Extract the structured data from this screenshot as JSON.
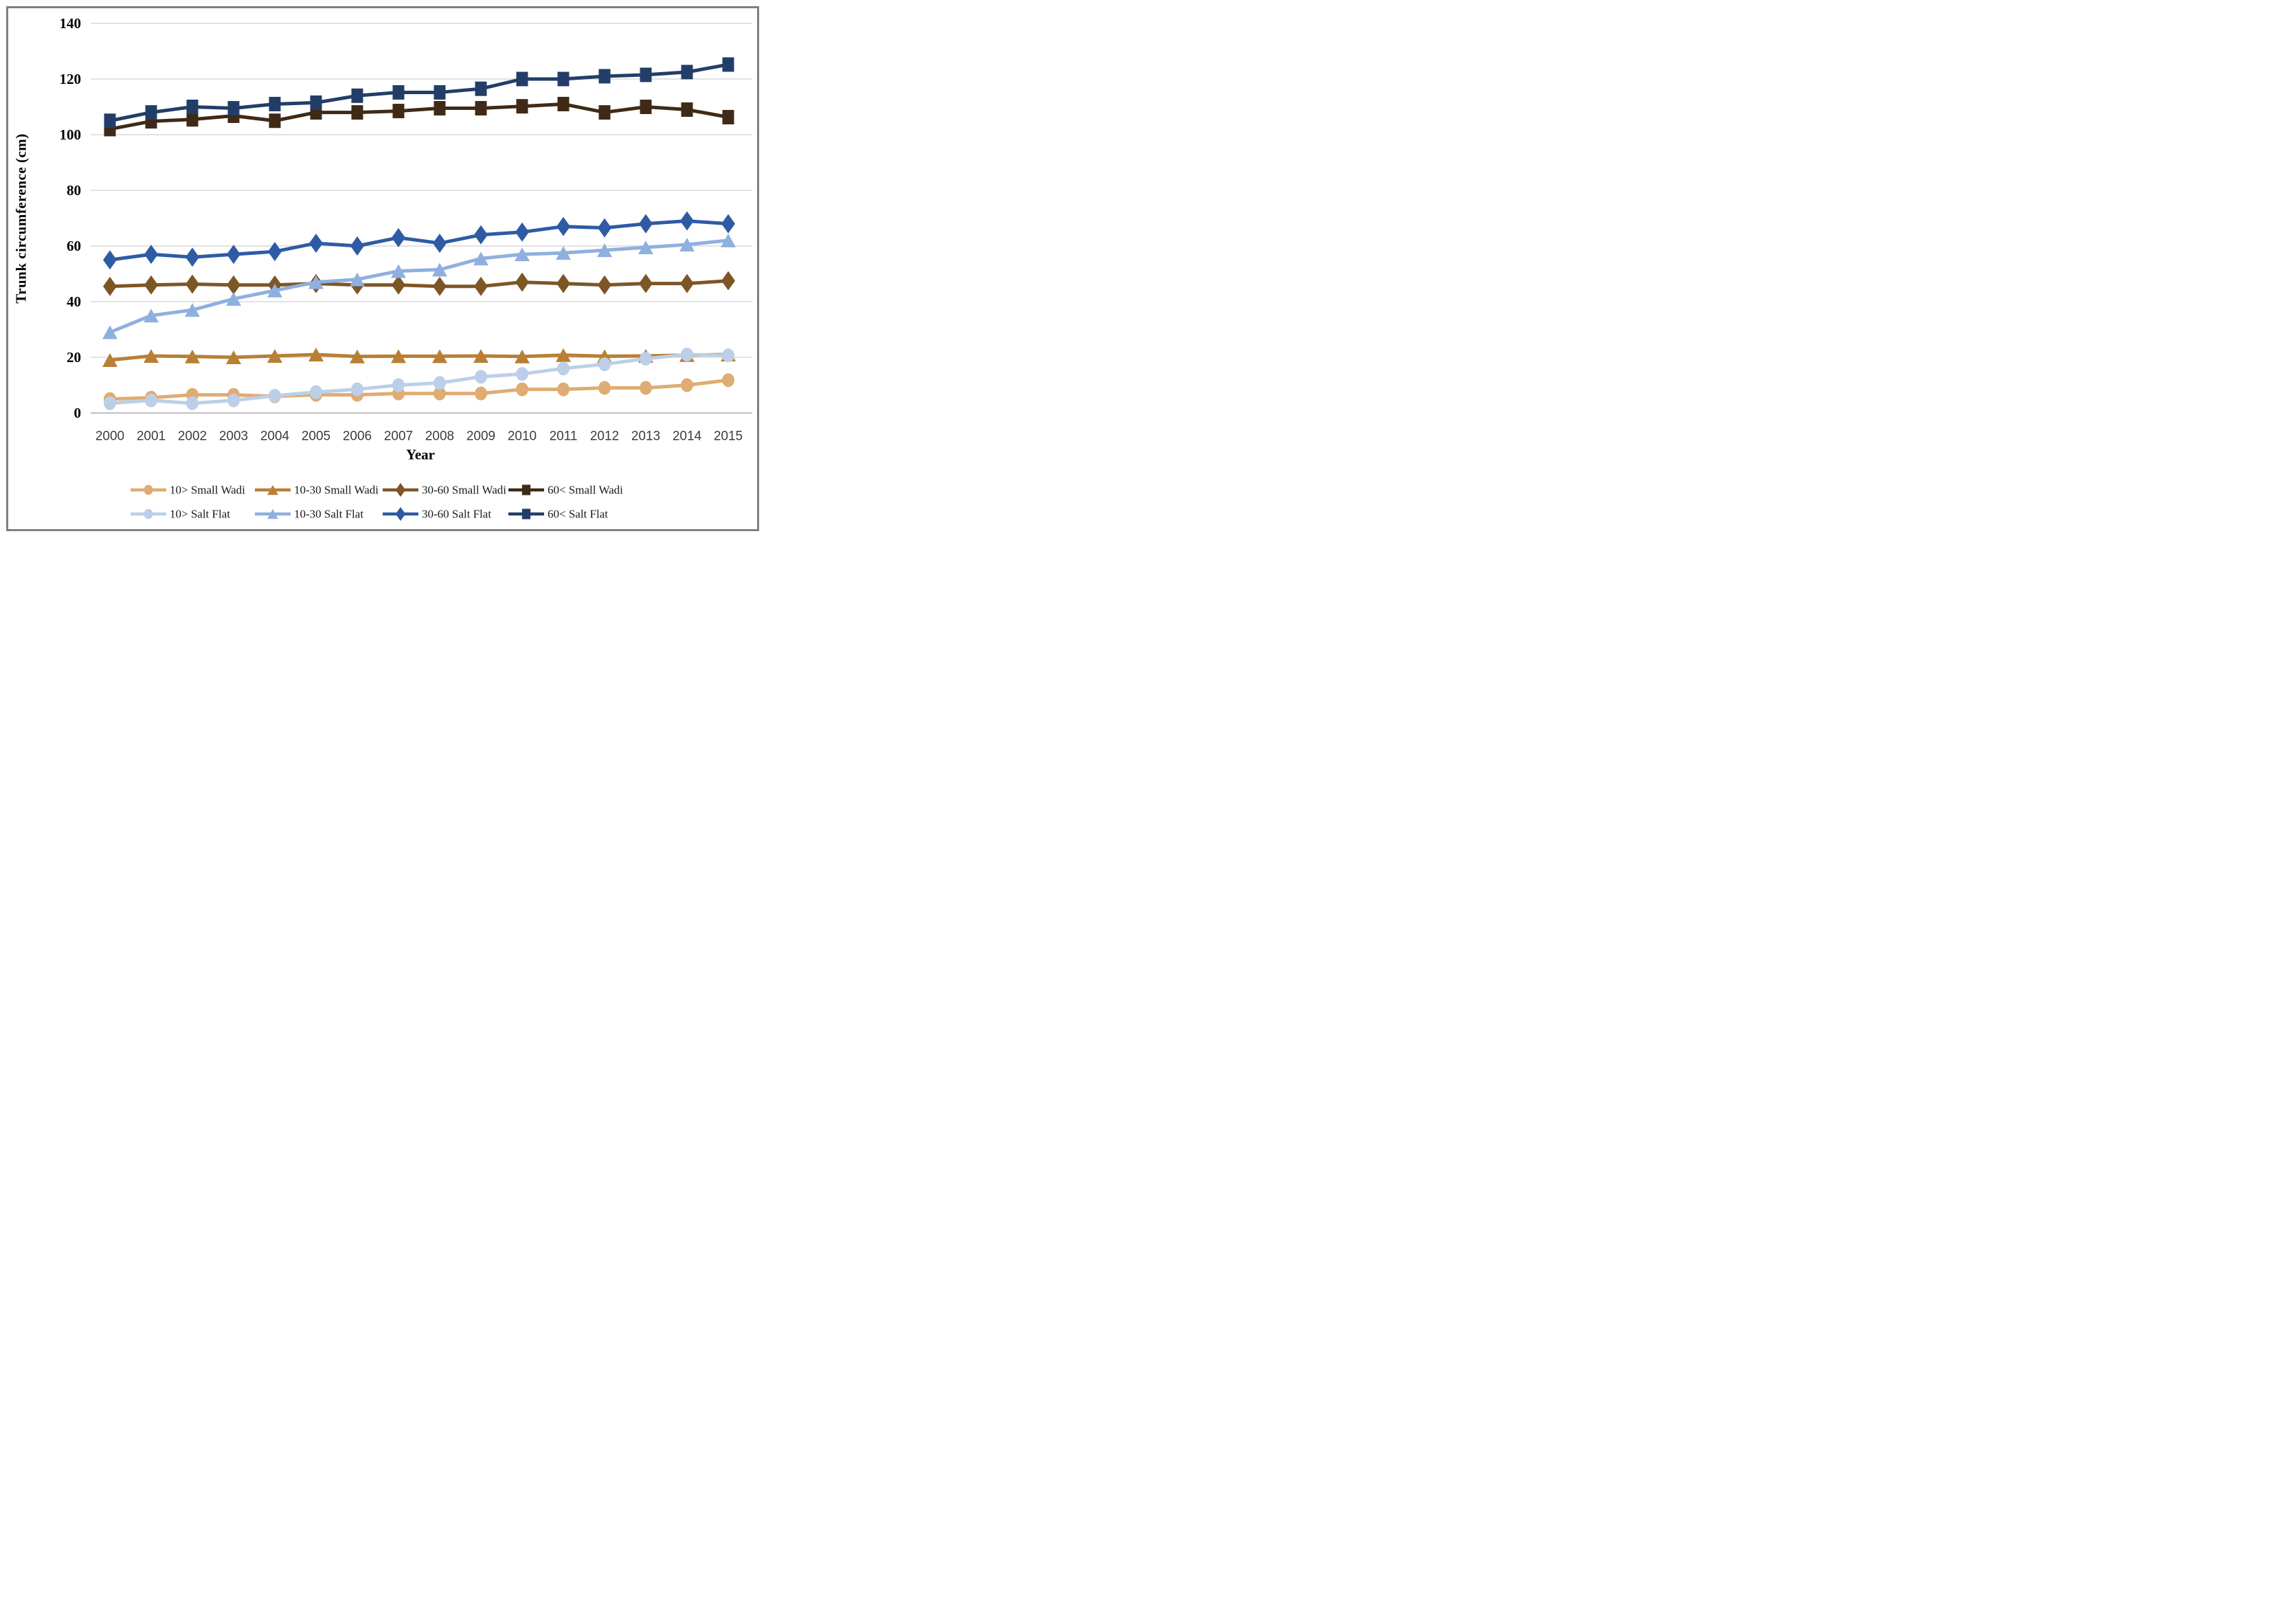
{
  "figure": {
    "border_color": "#7f7f7f",
    "background": "#ffffff",
    "gridline_color": "#d9d9d9",
    "axisline_color": "#bfbfbf",
    "tick_label_color": "#000000",
    "xtick_label_color": "#3b3b3b",
    "legend_text_color": "#1a1a1a"
  },
  "chart_data": {
    "type": "line",
    "title": "",
    "xlabel": "Year",
    "ylabel": "Trunk circumference (cm)",
    "x": [
      2000,
      2001,
      2002,
      2003,
      2004,
      2005,
      2006,
      2007,
      2008,
      2009,
      2010,
      2011,
      2012,
      2013,
      2014,
      2015
    ],
    "ylim": [
      0,
      140
    ],
    "yticks": [
      0,
      20,
      40,
      60,
      80,
      100,
      120,
      140
    ],
    "grid": true,
    "legend_position": "bottom",
    "series": [
      {
        "name": "10> Small Wadi",
        "marker": "circle",
        "color": "#dfac73",
        "values": [
          5,
          5.5,
          6.5,
          6.5,
          6,
          6.5,
          6.5,
          7,
          7,
          7,
          8.5,
          8.5,
          9,
          9,
          10,
          11.8
        ]
      },
      {
        "name": "10-30 Small Wadi",
        "marker": "triangle",
        "color": "#b87f35",
        "values": [
          19,
          20.5,
          20.3,
          20,
          20.5,
          21,
          20.3,
          20.4,
          20.4,
          20.5,
          20.3,
          20.8,
          20.4,
          20.5,
          20.8,
          21
        ]
      },
      {
        "name": "30-60 Small Wadi",
        "marker": "diamond",
        "color": "#7d5626",
        "values": [
          45.5,
          46,
          46.3,
          46,
          46,
          46.5,
          46,
          46,
          45.5,
          45.5,
          47,
          46.5,
          46,
          46.5,
          46.5,
          47.5
        ]
      },
      {
        "name": "60< Small Wadi",
        "marker": "square",
        "color": "#3f2a17",
        "values": [
          102,
          104.8,
          105.5,
          106.8,
          105,
          108,
          108,
          108.5,
          109.5,
          109.5,
          110.2,
          111,
          108,
          110,
          109,
          106.3
        ]
      },
      {
        "name": "10> Salt Flat",
        "marker": "circle",
        "color": "#bccfe8",
        "values": [
          3.5,
          4.5,
          3.5,
          4.5,
          6.2,
          7.5,
          8.5,
          10,
          10.8,
          13,
          14,
          16,
          17.5,
          19.5,
          21,
          20.7
        ]
      },
      {
        "name": "10-30 Salt Flat",
        "marker": "triangle",
        "color": "#8fb0df",
        "values": [
          29,
          35,
          37,
          41,
          44,
          47,
          48,
          51,
          51.5,
          55.5,
          57,
          57.5,
          58.5,
          59.5,
          60.5,
          62
        ]
      },
      {
        "name": "30-60 Salt Flat",
        "marker": "diamond",
        "color": "#2e5ba4",
        "values": [
          55,
          57,
          56,
          57,
          58,
          61,
          60,
          63,
          61,
          64,
          65,
          67,
          66.5,
          68,
          69,
          68
        ]
      },
      {
        "name": "60< Salt Flat",
        "marker": "square",
        "color": "#223e68",
        "values": [
          105,
          108,
          110,
          109.5,
          111,
          111.5,
          114,
          115.2,
          115.2,
          116.5,
          120,
          120,
          121,
          121.5,
          122.5,
          125.2
        ]
      }
    ]
  }
}
